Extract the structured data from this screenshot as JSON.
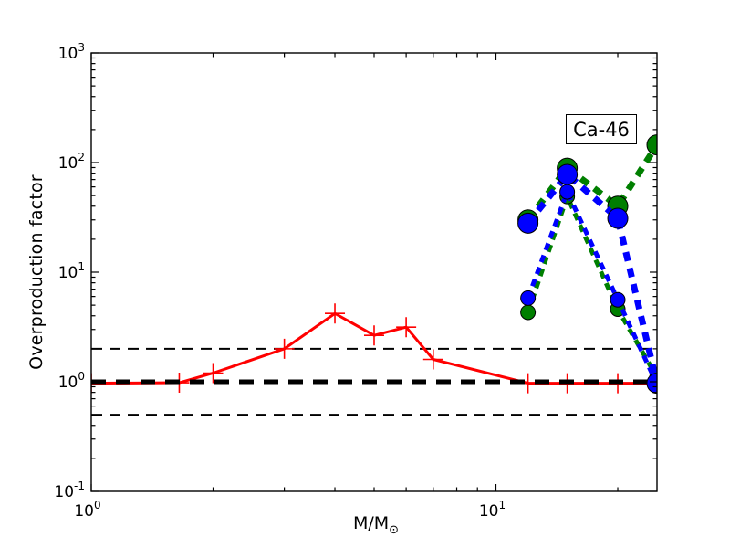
{
  "figure": {
    "background": "#ffffff",
    "ylabel": "Overproduction factor",
    "xlabel_main": "M/M",
    "xlabel_sub": "⊙",
    "annotation_label": "Ca-46"
  },
  "chart_data": {
    "type": "line",
    "title": "",
    "xlabel": "M/M_sun",
    "ylabel": "Overproduction factor",
    "annotation": "Ca-46",
    "xscale": "log",
    "yscale": "log",
    "xlim": [
      1,
      25
    ],
    "ylim": [
      0.1,
      1000
    ],
    "x_major_ticks": [
      1,
      10
    ],
    "y_major_ticks": [
      0.1,
      1,
      10,
      100,
      1000
    ],
    "grid": false,
    "legend": "none",
    "axis_color": "#000000",
    "reference_lines": [
      {
        "y": 2,
        "color": "#000000",
        "width": 2,
        "dash": [
          12,
          8
        ]
      },
      {
        "y": 0.5,
        "color": "#000000",
        "width": 2,
        "dash": [
          12,
          8
        ]
      },
      {
        "y": 1,
        "color": "#000000",
        "width": 5,
        "dash": [
          16,
          11
        ]
      }
    ],
    "series": [
      {
        "id": "red-solid-plus",
        "color": "#ff0000",
        "style": "solid",
        "width": 3,
        "marker": "plus",
        "marker_size": 11,
        "x": [
          1.0,
          1.65,
          2.0,
          3.0,
          4.0,
          5.0,
          6.0,
          7.0,
          12,
          15,
          20,
          25
        ],
        "y": [
          0.97,
          0.98,
          1.2,
          2.0,
          4.2,
          2.65,
          3.15,
          1.6,
          0.97,
          0.97,
          0.97,
          0.97
        ]
      },
      {
        "id": "green-dashed-thin",
        "color": "#007f00",
        "style": "dashed",
        "width": 5,
        "dash": [
          8,
          6
        ],
        "marker": "circle",
        "marker_size": 8,
        "x": [
          12,
          15,
          20,
          25
        ],
        "y": [
          4.3,
          49,
          4.6,
          1.1
        ]
      },
      {
        "id": "blue-dashed-thin",
        "color": "#0000ff",
        "style": "dashed",
        "width": 5,
        "dash": [
          8,
          6
        ],
        "marker": "circle",
        "marker_size": 8,
        "x": [
          12,
          15,
          20,
          25
        ],
        "y": [
          5.8,
          54,
          5.6,
          0.95
        ]
      },
      {
        "id": "green-dashed-thick",
        "color": "#007f00",
        "style": "dashed",
        "width": 7,
        "dash": [
          10,
          8
        ],
        "marker": "circle",
        "marker_size": 11,
        "x": [
          12,
          15,
          20,
          25
        ],
        "y": [
          30,
          89,
          40,
          145
        ]
      },
      {
        "id": "blue-dashed-thick",
        "color": "#0000ff",
        "style": "dashed",
        "width": 7,
        "dash": [
          10,
          8
        ],
        "marker": "circle",
        "marker_size": 11,
        "x": [
          12,
          15,
          20,
          25
        ],
        "y": [
          28,
          78,
          31,
          0.97
        ]
      }
    ]
  }
}
